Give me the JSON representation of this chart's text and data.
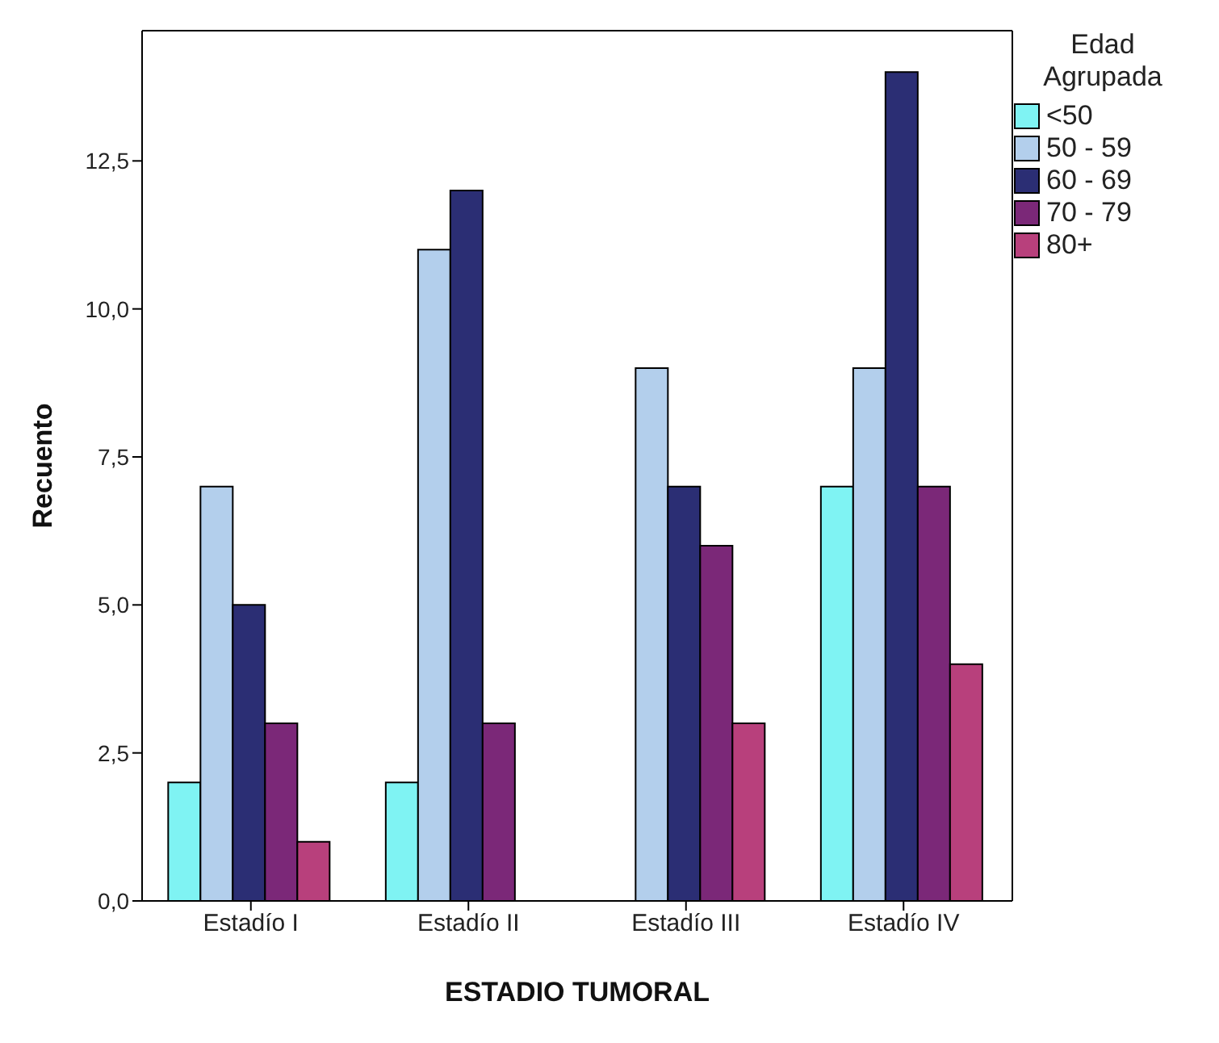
{
  "chart_data": {
    "type": "bar",
    "xlabel": "ESTADIO TUMORAL",
    "ylabel": "Recuento",
    "legend_title": "Edad Agrupada",
    "categories": [
      "Estadío I",
      "Estadío II",
      "Estadío III",
      "Estadío IV"
    ],
    "series": [
      {
        "name": "<50",
        "color": "#7ff3f3",
        "values": [
          2,
          2,
          null,
          7
        ]
      },
      {
        "name": "50 - 59",
        "color": "#b3cfec",
        "values": [
          7,
          11,
          9,
          9
        ]
      },
      {
        "name": "60 - 69",
        "color": "#2b2e74",
        "values": [
          5,
          12,
          7,
          14
        ]
      },
      {
        "name": "70 - 79",
        "color": "#7b2878",
        "values": [
          3,
          3,
          6,
          7
        ]
      },
      {
        "name": "80+",
        "color": "#b8407c",
        "values": [
          1,
          null,
          3,
          4
        ]
      }
    ],
    "ylim": [
      0,
      14.7
    ],
    "yticks": [
      {
        "value": 0,
        "label": "0,0"
      },
      {
        "value": 2.5,
        "label": "2,5"
      },
      {
        "value": 5,
        "label": "5,0"
      },
      {
        "value": 7.5,
        "label": "7,5"
      },
      {
        "value": 10,
        "label": "10,0"
      },
      {
        "value": 12.5,
        "label": "12,5"
      }
    ],
    "legend": "top right",
    "grid": false
  }
}
